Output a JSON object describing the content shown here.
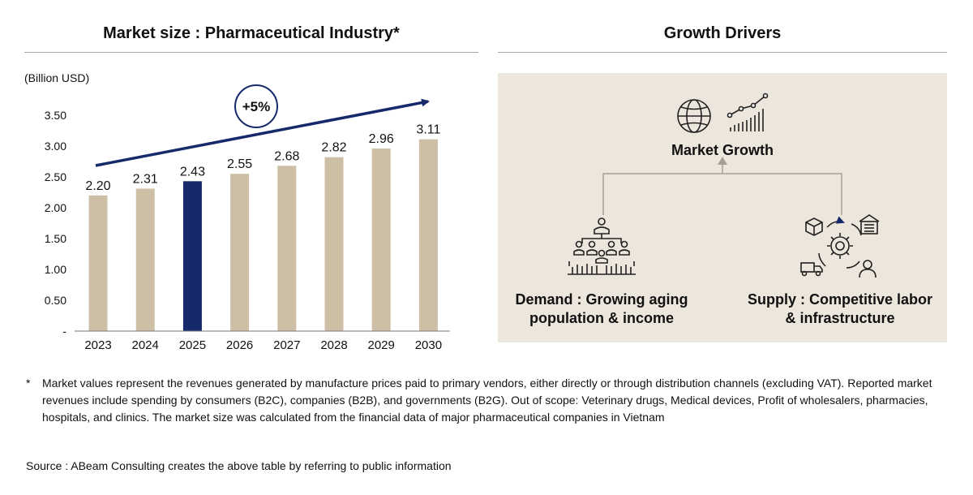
{
  "left_panel": {
    "title": "Market size : Pharmaceutical Industry*"
  },
  "right_panel": {
    "title": "Growth Drivers",
    "center": {
      "label": "Market Growth",
      "icons": [
        "globe-icon",
        "growth-chart-icon"
      ]
    },
    "demand": {
      "label_line1": "Demand : Growing aging",
      "label_line2": "population & income",
      "icon": "population-icon"
    },
    "supply": {
      "label_line1": "Supply : Competitive labor",
      "label_line2": "& infrastructure",
      "icon": "supply-chain-icon"
    }
  },
  "chart_data": {
    "type": "bar",
    "title": "Market size : Pharmaceutical Industry*",
    "ylabel": "(Billion USD)",
    "categories": [
      "2023",
      "2024",
      "2025",
      "2026",
      "2027",
      "2028",
      "2029",
      "2030"
    ],
    "values": [
      2.2,
      2.31,
      2.43,
      2.55,
      2.68,
      2.82,
      2.96,
      3.11
    ],
    "value_labels": [
      "2.20",
      "2.31",
      "2.43",
      "2.55",
      "2.68",
      "2.82",
      "2.96",
      "3.11"
    ],
    "highlight_category": "2025",
    "y_ticks": [
      "-",
      "0.50",
      "1.00",
      "1.50",
      "2.00",
      "2.50",
      "3.00",
      "3.50"
    ],
    "y_tick_values": [
      0,
      0.5,
      1.0,
      1.5,
      2.0,
      2.5,
      3.0,
      3.5
    ],
    "ylim": [
      0,
      3.5
    ],
    "grid": false,
    "annotation": "+5%",
    "colors": {
      "bar": "#cdbfa6",
      "highlight": "#162a6b",
      "arrow": "#162a6b"
    }
  },
  "footnote": {
    "mark": "*",
    "text": "Market values represent the revenues generated by manufacture prices paid to primary vendors, either directly or through distribution channels (excluding VAT). Reported market revenues include spending by consumers (B2C), companies (B2B), and governments (B2G). Out of scope: Veterinary drugs, Medical devices, Profit of wholesalers, pharmacies, hospitals, and clinics. The market size was calculated from the financial data of major pharmaceutical companies in Vietnam"
  },
  "source": "Source :  ABeam Consulting creates the above table by referring to public information",
  "colors": {
    "panel_bg": "#ede6dc",
    "rule": "#a6a6a6",
    "connector": "#a89f92"
  }
}
